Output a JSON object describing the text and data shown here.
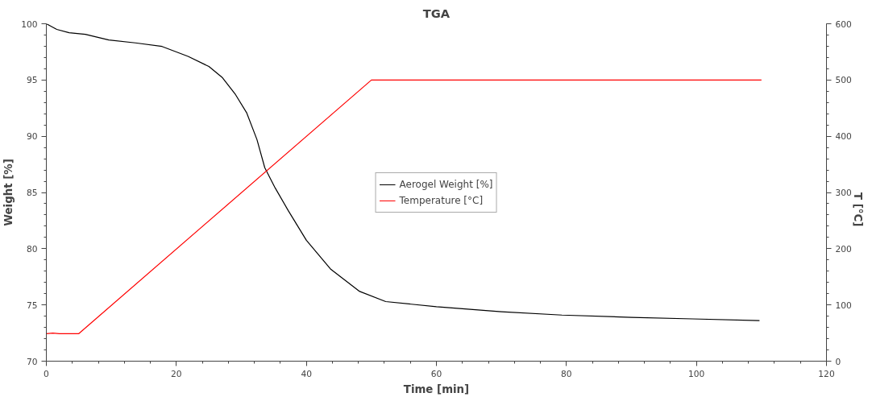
{
  "chart_data": {
    "type": "line",
    "title": "TGA",
    "xlabel": "Time [min]",
    "ylabel": "Weight [%]",
    "y2label": "T [°C]",
    "xlim": [
      0,
      120
    ],
    "xticks": [
      0,
      20,
      40,
      60,
      80,
      100,
      120
    ],
    "ylim": [
      70,
      100
    ],
    "yticks": [
      70,
      75,
      80,
      85,
      90,
      95,
      100
    ],
    "y2lim": [
      0,
      600
    ],
    "y2ticks": [
      0,
      100,
      200,
      300,
      400,
      500,
      600
    ],
    "grid": false,
    "legend": "center",
    "marker": "none",
    "line_style": "solid",
    "series": [
      {
        "name": "Aerogel Weight [%]",
        "color": "#000000",
        "x": [
          0,
          1.6,
          3.5,
          6,
          9.6,
          13.7,
          17.8,
          21.8,
          25,
          27.1,
          29.1,
          30.8,
          32.4,
          33.6,
          35.2,
          37.2,
          40,
          43.7,
          48.2,
          52.2,
          60,
          70,
          79.3,
          90,
          99.4,
          109.7
        ],
        "values": [
          100,
          99.5,
          99.2,
          99.06,
          98.56,
          98.3,
          97.98,
          97.1,
          96.2,
          95.2,
          93.7,
          92.1,
          89.7,
          87.2,
          85.4,
          83.4,
          80.75,
          78.2,
          76.2,
          75.3,
          74.84,
          74.4,
          74.1,
          73.9,
          73.76,
          73.6
        ]
      },
      {
        "name": "Temperature [°C]",
        "color": "#ff0000",
        "axis": "y2",
        "x": [
          0,
          1,
          2,
          5,
          50,
          110
        ],
        "values": [
          49,
          50,
          49,
          49,
          500,
          500
        ]
      }
    ]
  }
}
